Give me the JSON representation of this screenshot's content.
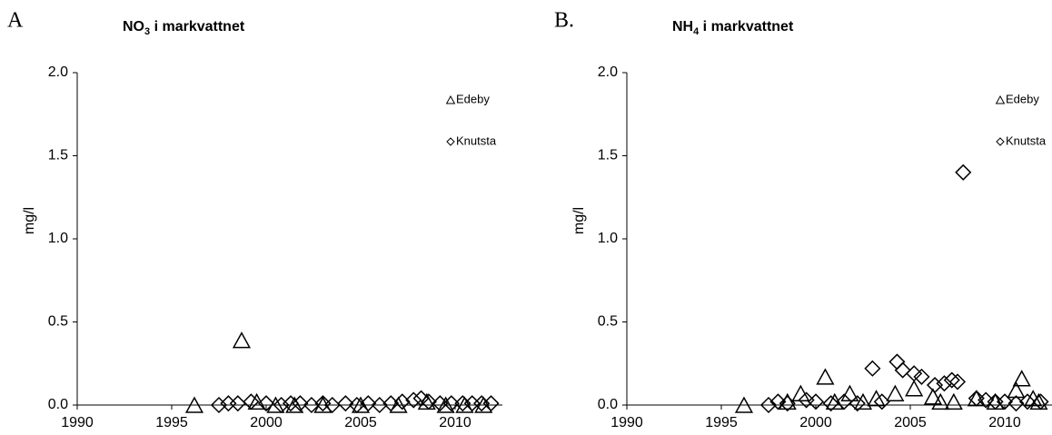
{
  "chart_data": [
    {
      "type": "scatter",
      "panel_label": "A",
      "title": [
        "NO",
        "3",
        " i markvattnet"
      ],
      "y_label": "mg/l",
      "xlim": [
        1990,
        2012.5
      ],
      "xticks": [
        1990,
        1995,
        2000,
        2005,
        2010
      ],
      "ylim": [
        0,
        2
      ],
      "yticks": [
        {
          "value": 0,
          "label": "0.0"
        },
        0.5,
        {
          "value": 1,
          "label": "1.0"
        },
        1.5,
        {
          "value": 2,
          "label": "2.0"
        }
      ],
      "legend": "upper right",
      "series": [
        {
          "name": "Edeby",
          "marker": "triangle",
          "color": "#000000",
          "x": [
            1996.2,
            1998.7,
            1999.5,
            2000.5,
            2001.5,
            2003.0,
            2005.0,
            2007.0,
            2008.5,
            2009.5,
            2010.5,
            2011.5
          ],
          "values": [
            0,
            0.39,
            0.02,
            0,
            0,
            0,
            0,
            0,
            0.02,
            0,
            0,
            0
          ]
        },
        {
          "name": "Knutsta",
          "marker": "diamond",
          "color": "#000000",
          "x": [
            1997.5,
            1998.0,
            1998.5,
            1999.2,
            2000.0,
            2000.8,
            2001.3,
            2001.8,
            2002.4,
            2003.0,
            2003.5,
            2004.2,
            2004.8,
            2005.4,
            2006.0,
            2006.6,
            2007.2,
            2007.8,
            2008.2,
            2008.6,
            2009.2,
            2009.8,
            2010.4,
            2010.9,
            2011.4,
            2011.9
          ],
          "values": [
            0,
            0.01,
            0.01,
            0.02,
            0.01,
            0,
            0.01,
            0.01,
            0,
            0.01,
            0,
            0.01,
            0,
            0.01,
            0,
            0.01,
            0.02,
            0.03,
            0.04,
            0.02,
            0.01,
            0.01,
            0.01,
            0.01,
            0.01,
            0.01
          ]
        }
      ]
    },
    {
      "type": "scatter",
      "panel_label": "B.",
      "title": [
        "NH",
        "4",
        " i markvattnet"
      ],
      "y_label": "mg/l",
      "xlim": [
        1990,
        2012.5
      ],
      "xticks": [
        1990,
        1995,
        2000,
        2005,
        2010
      ],
      "ylim": [
        0,
        2
      ],
      "yticks": [
        {
          "value": 0,
          "label": "0.0"
        },
        0.5,
        {
          "value": 1,
          "label": "1.0"
        },
        1.5,
        {
          "value": 2,
          "label": "2.0"
        }
      ],
      "legend": "upper right",
      "series": [
        {
          "name": "Edeby",
          "marker": "triangle",
          "color": "#000000",
          "x": [
            1996.2,
            1998.5,
            1999.2,
            2000.5,
            2001.0,
            2001.8,
            2002.5,
            2003.2,
            2004.2,
            2005.2,
            2006.2,
            2006.6,
            2007.3,
            2008.5,
            2009.5,
            2010.6,
            2010.9,
            2011.5,
            2011.8
          ],
          "values": [
            0,
            0.02,
            0.07,
            0.17,
            0.02,
            0.07,
            0.02,
            0.04,
            0.07,
            0.1,
            0.05,
            0.02,
            0.02,
            0.04,
            0.02,
            0.09,
            0.16,
            0.04,
            0.02
          ]
        },
        {
          "name": "Knutsta",
          "marker": "diamond",
          "color": "#000000",
          "x": [
            1997.5,
            1998.0,
            1998.5,
            1999.5,
            2000.0,
            2000.8,
            2001.5,
            2002.2,
            2003.0,
            2003.5,
            2004.3,
            2004.6,
            2005.2,
            2005.6,
            2006.3,
            2006.8,
            2007.2,
            2007.5,
            2007.8,
            2008.5,
            2009.0,
            2009.5,
            2010.0,
            2010.6,
            2011.2,
            2011.9
          ],
          "values": [
            0,
            0.02,
            0.01,
            0.03,
            0.02,
            0.01,
            0.02,
            0.01,
            0.22,
            0.02,
            0.26,
            0.21,
            0.19,
            0.17,
            0.12,
            0.13,
            0.15,
            0.14,
            1.4,
            0.04,
            0.03,
            0.02,
            0.02,
            0.01,
            0.02,
            0.02
          ]
        }
      ]
    }
  ]
}
